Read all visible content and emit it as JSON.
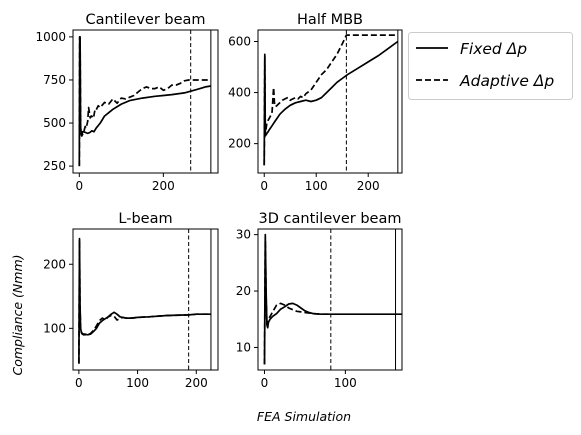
{
  "figure": {
    "xlabel": "FEA Simulation",
    "ylabel": "Compliance (Nmm)",
    "legend": {
      "placement": "right of top-right panel",
      "entries": [
        {
          "label": "Fixed Δp",
          "style": "solid"
        },
        {
          "label": "Adaptive Δp",
          "style": "dashed"
        }
      ]
    }
  },
  "chart_data": [
    {
      "type": "line",
      "title": "Cantilever beam",
      "xlim": [
        -15,
        330
      ],
      "ylim": [
        210,
        1040
      ],
      "xticks": [
        0,
        200
      ],
      "yticks": [
        250,
        500,
        750,
        1000
      ],
      "vlines": [
        {
          "x": 265,
          "style": "dashed"
        },
        {
          "x": 313,
          "style": "solid"
        }
      ],
      "series": [
        {
          "name": "Fixed Δp",
          "style": "solid",
          "x": [
            0,
            1,
            2,
            3,
            4,
            5,
            6,
            7,
            8,
            10,
            15,
            20,
            25,
            30,
            35,
            40,
            50,
            60,
            70,
            80,
            100,
            120,
            150,
            180,
            200,
            220,
            250,
            265,
            280,
            300,
            313
          ],
          "y": [
            250,
            1000,
            1000,
            480,
            455,
            440,
            435,
            440,
            450,
            450,
            445,
            440,
            445,
            455,
            450,
            470,
            500,
            540,
            560,
            580,
            610,
            630,
            645,
            655,
            660,
            665,
            675,
            685,
            695,
            710,
            715
          ]
        },
        {
          "name": "Adaptive Δp",
          "style": "dashed",
          "x": [
            0,
            1,
            2,
            3,
            4,
            5,
            6,
            8,
            10,
            12,
            14,
            16,
            18,
            20,
            22,
            24,
            26,
            28,
            30,
            32,
            34,
            36,
            38,
            40,
            45,
            50,
            60,
            70,
            80,
            90,
            100,
            110,
            120,
            130,
            140,
            150,
            160,
            170,
            180,
            190,
            200,
            210,
            220,
            230,
            240,
            250,
            260,
            265,
            280,
            300,
            313
          ],
          "y": [
            250,
            1000,
            990,
            470,
            440,
            430,
            425,
            435,
            445,
            460,
            480,
            470,
            490,
            510,
            590,
            560,
            530,
            540,
            540,
            530,
            530,
            560,
            580,
            575,
            600,
            590,
            620,
            610,
            640,
            615,
            645,
            640,
            650,
            660,
            680,
            700,
            710,
            700,
            700,
            710,
            690,
            700,
            720,
            720,
            730,
            745,
            750,
            750,
            750,
            750,
            750
          ]
        }
      ]
    },
    {
      "type": "line",
      "title": "Half MBB",
      "xlim": [
        -12,
        265
      ],
      "ylim": [
        85,
        645
      ],
      "xticks": [
        0,
        100,
        200
      ],
      "yticks": [
        200,
        400,
        600
      ],
      "vlines": [
        {
          "x": 158,
          "style": "dashed"
        },
        {
          "x": 257,
          "style": "solid"
        }
      ],
      "series": [
        {
          "name": "Fixed Δp",
          "style": "solid",
          "x": [
            0,
            1,
            2,
            3,
            4,
            5,
            7,
            10,
            15,
            20,
            25,
            30,
            35,
            40,
            50,
            60,
            70,
            80,
            90,
            100,
            110,
            120,
            130,
            140,
            150,
            160,
            180,
            200,
            220,
            240,
            257
          ],
          "y": [
            115,
            550,
            230,
            235,
            235,
            240,
            245,
            255,
            270,
            285,
            300,
            315,
            325,
            335,
            350,
            360,
            365,
            370,
            365,
            370,
            380,
            400,
            420,
            440,
            455,
            470,
            495,
            520,
            545,
            575,
            600
          ]
        },
        {
          "name": "Adaptive Δp",
          "style": "dashed",
          "x": [
            0,
            1,
            2,
            3,
            4,
            5,
            7,
            10,
            15,
            18,
            20,
            22,
            25,
            30,
            35,
            40,
            45,
            50,
            55,
            60,
            65,
            70,
            75,
            80,
            90,
            100,
            110,
            120,
            130,
            140,
            150,
            158,
            180,
            200,
            220,
            257
          ],
          "y": [
            115,
            540,
            240,
            250,
            265,
            280,
            290,
            300,
            320,
            420,
            350,
            345,
            350,
            360,
            370,
            375,
            380,
            370,
            375,
            380,
            375,
            385,
            380,
            395,
            410,
            440,
            470,
            490,
            520,
            550,
            590,
            625,
            625,
            625,
            625,
            625
          ]
        }
      ]
    },
    {
      "type": "line",
      "title": "L-beam",
      "xlim": [
        -10,
        237
      ],
      "ylim": [
        35,
        255
      ],
      "xticks": [
        0,
        100,
        200
      ],
      "yticks": [
        100,
        200
      ],
      "vlines": [
        {
          "x": 187,
          "style": "dashed"
        },
        {
          "x": 225,
          "style": "solid"
        }
      ],
      "series": [
        {
          "name": "Fixed Δp",
          "style": "solid",
          "x": [
            0,
            1,
            2,
            3,
            4,
            5,
            6,
            8,
            10,
            15,
            20,
            25,
            30,
            35,
            40,
            45,
            50,
            55,
            60,
            65,
            70,
            75,
            80,
            90,
            100,
            120,
            150,
            187,
            200,
            225
          ],
          "y": [
            45,
            240,
            140,
            100,
            95,
            93,
            92,
            91,
            91,
            90,
            91,
            95,
            100,
            108,
            112,
            115,
            118,
            122,
            125,
            122,
            118,
            117,
            116,
            116,
            117,
            118,
            120,
            121,
            122,
            122
          ]
        },
        {
          "name": "Adaptive Δp",
          "style": "dashed",
          "x": [
            0,
            1,
            2,
            3,
            4,
            5,
            6,
            8,
            10,
            15,
            20,
            25,
            30,
            35,
            40,
            45,
            50,
            55,
            60,
            65,
            70,
            75,
            80,
            90,
            100,
            120,
            150,
            187,
            200,
            225
          ],
          "y": [
            45,
            238,
            135,
            100,
            94,
            92,
            91,
            90,
            90,
            90,
            92,
            97,
            104,
            112,
            116,
            113,
            118,
            120,
            119,
            113,
            115,
            117,
            116,
            116,
            117,
            118,
            120,
            121,
            122,
            122
          ]
        }
      ]
    },
    {
      "type": "line",
      "title": "3D cantilever beam",
      "xlim": [
        -8,
        170
      ],
      "ylim": [
        6,
        31
      ],
      "xticks": [
        0,
        100
      ],
      "yticks": [
        10,
        20,
        30
      ],
      "vlines": [
        {
          "x": 82,
          "style": "dashed"
        },
        {
          "x": 162,
          "style": "solid"
        }
      ],
      "series": [
        {
          "name": "Fixed Δp",
          "style": "solid",
          "x": [
            0,
            1,
            2,
            3,
            4,
            5,
            7,
            10,
            15,
            20,
            25,
            30,
            35,
            40,
            45,
            50,
            55,
            60,
            70,
            80,
            100,
            130,
            162,
            170
          ],
          "y": [
            7,
            30,
            20,
            14,
            13.5,
            14.5,
            15,
            15.5,
            16,
            16.8,
            17.2,
            17.7,
            17.8,
            17.5,
            17,
            16.5,
            16.2,
            16,
            15.9,
            15.9,
            15.9,
            15.9,
            15.9,
            15.9
          ]
        },
        {
          "name": "Adaptive Δp",
          "style": "dashed",
          "x": [
            0,
            1,
            2,
            3,
            4,
            5,
            7,
            10,
            15,
            20,
            25,
            30,
            35,
            40,
            45,
            50,
            55,
            60,
            70,
            82
          ],
          "y": [
            7,
            29,
            19,
            14.5,
            14,
            15,
            15.5,
            16.3,
            17.5,
            17.8,
            17.5,
            17,
            16.7,
            16.4,
            16.3,
            16.2,
            16.1,
            16,
            15.9,
            15.9
          ]
        }
      ]
    }
  ]
}
